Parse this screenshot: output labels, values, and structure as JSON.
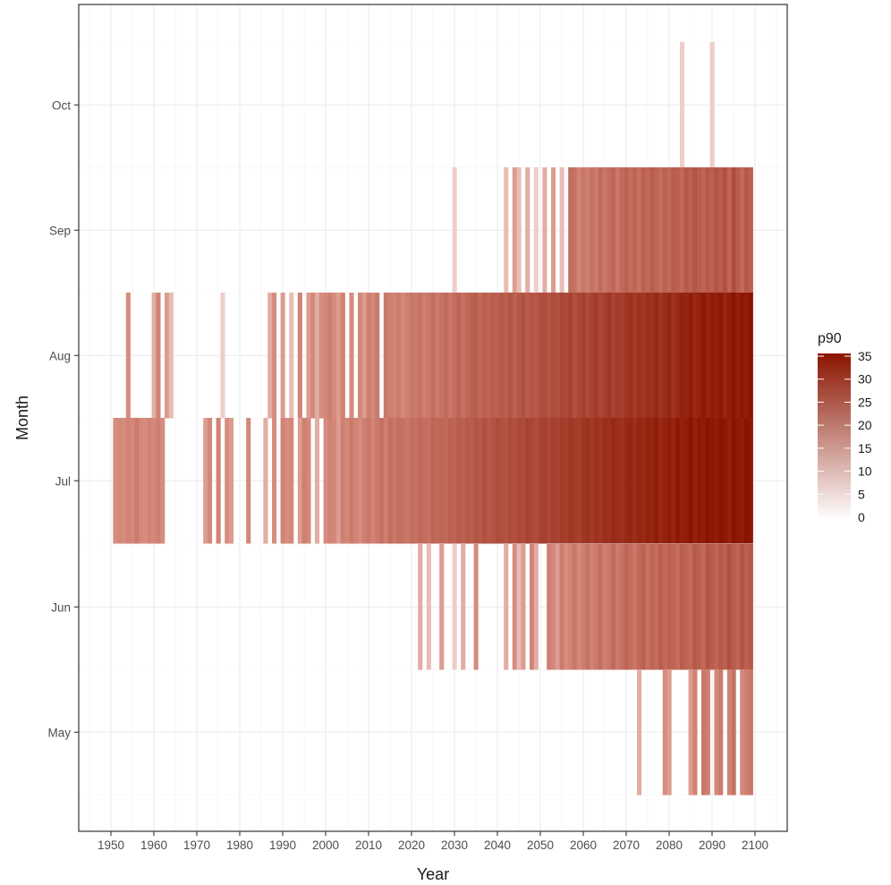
{
  "chart_data": {
    "type": "heatmap",
    "title": "",
    "xlabel": "Year",
    "ylabel": "Month",
    "x_ticks": [
      1950,
      1960,
      1970,
      1980,
      1990,
      2000,
      2010,
      2020,
      2030,
      2040,
      2050,
      2060,
      2070,
      2080,
      2090,
      2100
    ],
    "x_tick_labels": [
      "1950",
      "1960",
      "1970",
      "1980",
      "1990",
      "2000",
      "2010",
      "2020",
      "2030",
      "2040",
      "2050",
      "2060",
      "2070",
      "2080",
      "2090",
      "2100"
    ],
    "xlim": [
      1945,
      2110
    ],
    "y_categories": [
      "May",
      "Jun",
      "Jul",
      "Aug",
      "Sep",
      "Oct"
    ],
    "grid": true,
    "legend": {
      "title": "p90",
      "position": "right",
      "ticks": [
        0,
        5,
        10,
        15,
        20,
        25,
        30,
        35
      ],
      "tick_labels": [
        "0",
        "5",
        "10",
        "15",
        "20",
        "25",
        "30",
        "35"
      ],
      "range": [
        0,
        35
      ],
      "color_low": "#ffffff",
      "color_high": "#8b1400"
    },
    "cells": {
      "Oct": [
        [
          2083,
          3
        ],
        [
          2090,
          3
        ]
      ],
      "Sep": [
        [
          2030,
          3
        ],
        [
          2042,
          4
        ],
        [
          2044,
          6
        ],
        [
          2045,
          4
        ],
        [
          2047,
          5
        ],
        [
          2049,
          3
        ],
        [
          2051,
          5
        ],
        [
          2053,
          6
        ],
        [
          2055,
          4
        ],
        [
          2057,
          14
        ],
        [
          2058,
          13
        ],
        [
          2059,
          9
        ],
        [
          2060,
          12
        ],
        [
          2061,
          10
        ],
        [
          2062,
          13
        ],
        [
          2063,
          11
        ],
        [
          2064,
          15
        ],
        [
          2065,
          12
        ],
        [
          2066,
          14
        ],
        [
          2067,
          16
        ],
        [
          2068,
          12
        ],
        [
          2069,
          15
        ],
        [
          2070,
          17
        ],
        [
          2071,
          14
        ],
        [
          2072,
          16
        ],
        [
          2073,
          13
        ],
        [
          2074,
          17
        ],
        [
          2075,
          15
        ],
        [
          2076,
          18
        ],
        [
          2077,
          16
        ],
        [
          2078,
          14
        ],
        [
          2079,
          17
        ],
        [
          2080,
          15
        ],
        [
          2081,
          18
        ],
        [
          2082,
          17
        ],
        [
          2083,
          15
        ],
        [
          2084,
          19
        ],
        [
          2085,
          17
        ],
        [
          2086,
          20
        ],
        [
          2087,
          18
        ],
        [
          2088,
          16
        ],
        [
          2089,
          19
        ],
        [
          2090,
          17
        ],
        [
          2091,
          20
        ],
        [
          2092,
          18
        ],
        [
          2093,
          21
        ],
        [
          2094,
          16
        ],
        [
          2095,
          22
        ],
        [
          2096,
          18
        ],
        [
          2097,
          15
        ],
        [
          2098,
          19
        ],
        [
          2099,
          17
        ]
      ],
      "Aug": [
        [
          1954,
          7
        ],
        [
          1960,
          5
        ],
        [
          1961,
          9
        ],
        [
          1963,
          6
        ],
        [
          1964,
          4
        ],
        [
          1976,
          3
        ],
        [
          1987,
          5
        ],
        [
          1988,
          7
        ],
        [
          1990,
          6
        ],
        [
          1992,
          4
        ],
        [
          1994,
          9
        ],
        [
          1996,
          6
        ],
        [
          1997,
          8
        ],
        [
          1998,
          5
        ],
        [
          1999,
          7
        ],
        [
          2000,
          8
        ],
        [
          2001,
          10
        ],
        [
          2002,
          7
        ],
        [
          2003,
          6
        ],
        [
          2004,
          9
        ],
        [
          2006,
          7
        ],
        [
          2008,
          8
        ],
        [
          2009,
          6
        ],
        [
          2010,
          10
        ],
        [
          2011,
          8
        ],
        [
          2012,
          11
        ],
        [
          2014,
          12
        ],
        [
          2015,
          10
        ],
        [
          2016,
          9
        ],
        [
          2017,
          11
        ],
        [
          2018,
          8
        ],
        [
          2019,
          10
        ],
        [
          2020,
          12
        ],
        [
          2021,
          11
        ],
        [
          2022,
          13
        ],
        [
          2023,
          10
        ],
        [
          2024,
          12
        ],
        [
          2025,
          14
        ],
        [
          2026,
          11
        ],
        [
          2027,
          13
        ],
        [
          2028,
          15
        ],
        [
          2029,
          12
        ],
        [
          2030,
          14
        ],
        [
          2031,
          16
        ],
        [
          2032,
          13
        ],
        [
          2033,
          15
        ],
        [
          2034,
          17
        ],
        [
          2035,
          18
        ],
        [
          2036,
          15
        ],
        [
          2037,
          17
        ],
        [
          2038,
          16
        ],
        [
          2039,
          18
        ],
        [
          2040,
          17
        ],
        [
          2041,
          19
        ],
        [
          2042,
          18
        ],
        [
          2043,
          20
        ],
        [
          2044,
          17
        ],
        [
          2045,
          19
        ],
        [
          2046,
          21
        ],
        [
          2047,
          18
        ],
        [
          2048,
          20
        ],
        [
          2049,
          19
        ],
        [
          2050,
          21
        ],
        [
          2051,
          22
        ],
        [
          2052,
          20
        ],
        [
          2053,
          22
        ],
        [
          2054,
          21
        ],
        [
          2055,
          23
        ],
        [
          2056,
          22
        ],
        [
          2057,
          24
        ],
        [
          2058,
          21
        ],
        [
          2059,
          23
        ],
        [
          2060,
          25
        ],
        [
          2061,
          22
        ],
        [
          2062,
          24
        ],
        [
          2063,
          26
        ],
        [
          2064,
          23
        ],
        [
          2065,
          25
        ],
        [
          2066,
          27
        ],
        [
          2067,
          24
        ],
        [
          2068,
          26
        ],
        [
          2069,
          25
        ],
        [
          2070,
          27
        ],
        [
          2071,
          28
        ],
        [
          2072,
          26
        ],
        [
          2073,
          28
        ],
        [
          2074,
          27
        ],
        [
          2075,
          29
        ],
        [
          2076,
          28
        ],
        [
          2077,
          30
        ],
        [
          2078,
          27
        ],
        [
          2079,
          29
        ],
        [
          2080,
          31
        ],
        [
          2081,
          28
        ],
        [
          2082,
          30
        ],
        [
          2083,
          32
        ],
        [
          2084,
          31
        ],
        [
          2085,
          33
        ],
        [
          2086,
          30
        ],
        [
          2087,
          32
        ],
        [
          2088,
          34
        ],
        [
          2089,
          31
        ],
        [
          2090,
          33
        ],
        [
          2091,
          32
        ],
        [
          2092,
          34
        ],
        [
          2093,
          31
        ],
        [
          2094,
          33
        ],
        [
          2095,
          35
        ],
        [
          2096,
          32
        ],
        [
          2097,
          34
        ],
        [
          2098,
          33
        ],
        [
          2099,
          35
        ]
      ],
      "Jul": [
        [
          1951,
          7
        ],
        [
          1952,
          8
        ],
        [
          1953,
          7
        ],
        [
          1954,
          9
        ],
        [
          1955,
          8
        ],
        [
          1956,
          11
        ],
        [
          1957,
          8
        ],
        [
          1958,
          7
        ],
        [
          1959,
          9
        ],
        [
          1960,
          8
        ],
        [
          1961,
          10
        ],
        [
          1962,
          7
        ],
        [
          1972,
          6
        ],
        [
          1973,
          8
        ],
        [
          1975,
          9
        ],
        [
          1977,
          7
        ],
        [
          1978,
          6
        ],
        [
          1982,
          8
        ],
        [
          1986,
          5
        ],
        [
          1988,
          7
        ],
        [
          1990,
          9
        ],
        [
          1991,
          7
        ],
        [
          1992,
          8
        ],
        [
          1994,
          6
        ],
        [
          1995,
          10
        ],
        [
          1996,
          8
        ],
        [
          1998,
          5
        ],
        [
          2000,
          7
        ],
        [
          2001,
          9
        ],
        [
          2002,
          8
        ],
        [
          2003,
          6
        ],
        [
          2004,
          10
        ],
        [
          2005,
          8
        ],
        [
          2006,
          11
        ],
        [
          2007,
          9
        ],
        [
          2008,
          7
        ],
        [
          2009,
          10
        ],
        [
          2010,
          12
        ],
        [
          2011,
          9
        ],
        [
          2012,
          11
        ],
        [
          2013,
          13
        ],
        [
          2014,
          10
        ],
        [
          2015,
          14
        ],
        [
          2016,
          12
        ],
        [
          2017,
          14
        ],
        [
          2018,
          13
        ],
        [
          2019,
          12
        ],
        [
          2020,
          14
        ],
        [
          2021,
          13
        ],
        [
          2022,
          15
        ],
        [
          2023,
          14
        ],
        [
          2024,
          13
        ],
        [
          2025,
          16
        ],
        [
          2026,
          15
        ],
        [
          2027,
          16
        ],
        [
          2028,
          15
        ],
        [
          2029,
          17
        ],
        [
          2030,
          16
        ],
        [
          2031,
          18
        ],
        [
          2032,
          17
        ],
        [
          2033,
          19
        ],
        [
          2034,
          18
        ],
        [
          2035,
          20
        ],
        [
          2036,
          19
        ],
        [
          2037,
          21
        ],
        [
          2038,
          19
        ],
        [
          2039,
          20
        ],
        [
          2040,
          22
        ],
        [
          2041,
          21
        ],
        [
          2042,
          20
        ],
        [
          2043,
          22
        ],
        [
          2044,
          21
        ],
        [
          2045,
          23
        ],
        [
          2046,
          22
        ],
        [
          2047,
          24
        ],
        [
          2048,
          23
        ],
        [
          2049,
          22
        ],
        [
          2050,
          24
        ],
        [
          2051,
          25
        ],
        [
          2052,
          23
        ],
        [
          2053,
          25
        ],
        [
          2054,
          24
        ],
        [
          2055,
          26
        ],
        [
          2056,
          25
        ],
        [
          2057,
          27
        ],
        [
          2058,
          26
        ],
        [
          2059,
          25
        ],
        [
          2060,
          27
        ],
        [
          2061,
          28
        ],
        [
          2062,
          26
        ],
        [
          2063,
          28
        ],
        [
          2064,
          27
        ],
        [
          2065,
          29
        ],
        [
          2066,
          28
        ],
        [
          2067,
          30
        ],
        [
          2068,
          29
        ],
        [
          2069,
          28
        ],
        [
          2070,
          30
        ],
        [
          2071,
          31
        ],
        [
          2072,
          29
        ],
        [
          2073,
          31
        ],
        [
          2074,
          30
        ],
        [
          2075,
          32
        ],
        [
          2076,
          31
        ],
        [
          2077,
          33
        ],
        [
          2078,
          30
        ],
        [
          2079,
          32
        ],
        [
          2080,
          33
        ],
        [
          2081,
          31
        ],
        [
          2082,
          34
        ],
        [
          2083,
          32
        ],
        [
          2084,
          33
        ],
        [
          2085,
          35
        ],
        [
          2086,
          32
        ],
        [
          2087,
          34
        ],
        [
          2088,
          33
        ],
        [
          2089,
          35
        ],
        [
          2090,
          34
        ],
        [
          2091,
          33
        ],
        [
          2092,
          35
        ],
        [
          2093,
          34
        ],
        [
          2094,
          32
        ],
        [
          2095,
          35
        ],
        [
          2096,
          34
        ],
        [
          2097,
          33
        ],
        [
          2098,
          35
        ],
        [
          2099,
          34
        ]
      ],
      "Jun": [
        [
          2022,
          5
        ],
        [
          2024,
          4
        ],
        [
          2027,
          6
        ],
        [
          2030,
          3
        ],
        [
          2032,
          5
        ],
        [
          2035,
          7
        ],
        [
          2042,
          5
        ],
        [
          2044,
          7
        ],
        [
          2045,
          4
        ],
        [
          2046,
          6
        ],
        [
          2048,
          9
        ],
        [
          2049,
          5
        ],
        [
          2052,
          10
        ],
        [
          2053,
          8
        ],
        [
          2054,
          6
        ],
        [
          2055,
          11
        ],
        [
          2056,
          7
        ],
        [
          2057,
          9
        ],
        [
          2058,
          12
        ],
        [
          2059,
          8
        ],
        [
          2060,
          10
        ],
        [
          2061,
          13
        ],
        [
          2062,
          9
        ],
        [
          2063,
          11
        ],
        [
          2064,
          14
        ],
        [
          2065,
          10
        ],
        [
          2066,
          12
        ],
        [
          2067,
          15
        ],
        [
          2068,
          11
        ],
        [
          2069,
          13
        ],
        [
          2070,
          16
        ],
        [
          2071,
          14
        ],
        [
          2072,
          12
        ],
        [
          2073,
          15
        ],
        [
          2074,
          17
        ],
        [
          2075,
          13
        ],
        [
          2076,
          16
        ],
        [
          2077,
          14
        ],
        [
          2078,
          18
        ],
        [
          2079,
          15
        ],
        [
          2080,
          17
        ],
        [
          2081,
          16
        ],
        [
          2082,
          14
        ],
        [
          2083,
          18
        ],
        [
          2084,
          16
        ],
        [
          2085,
          15
        ],
        [
          2086,
          19
        ],
        [
          2087,
          17
        ],
        [
          2088,
          15
        ],
        [
          2089,
          20
        ],
        [
          2090,
          18
        ],
        [
          2091,
          16
        ],
        [
          2092,
          19
        ],
        [
          2093,
          17
        ],
        [
          2094,
          21
        ],
        [
          2095,
          18
        ],
        [
          2096,
          16
        ],
        [
          2097,
          20
        ],
        [
          2098,
          17
        ],
        [
          2099,
          19
        ]
      ],
      "May": [
        [
          2073,
          5
        ],
        [
          2079,
          7
        ],
        [
          2080,
          6
        ],
        [
          2085,
          6
        ],
        [
          2086,
          9
        ],
        [
          2088,
          12
        ],
        [
          2089,
          10
        ],
        [
          2091,
          8
        ],
        [
          2092,
          11
        ],
        [
          2094,
          9
        ],
        [
          2095,
          13
        ],
        [
          2097,
          8
        ],
        [
          2098,
          10
        ],
        [
          2099,
          12
        ]
      ]
    }
  }
}
